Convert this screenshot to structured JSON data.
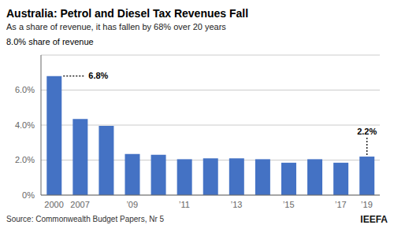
{
  "chart_data": {
    "type": "bar",
    "title": "Australia: Petrol and Diesel Tax Revenues Fall",
    "subtitle": "As a share of revenue, it has fallen by 68% over 20 years",
    "ylabel": "8.0% share of revenue",
    "source": "Source: Commonwealth Budget Papers, Nr 5",
    "logo": "IEEFA",
    "categories": [
      "2000",
      "2007",
      null,
      "’09",
      null,
      "’11",
      null,
      "’13",
      null,
      "’15",
      null,
      "’17",
      "’19"
    ],
    "values": [
      6.8,
      4.35,
      3.95,
      2.35,
      2.3,
      2.05,
      2.1,
      2.1,
      2.05,
      1.85,
      2.05,
      1.85,
      2.2
    ],
    "color": "#4472C4",
    "ylim": [
      0,
      8.0
    ],
    "yticks": [
      {
        "value": 0,
        "label": "0%"
      },
      {
        "value": 2.0,
        "label": "2.0%"
      },
      {
        "value": 4.0,
        "label": "4.0%"
      },
      {
        "value": 6.0,
        "label": "6.0%"
      }
    ],
    "grid": true,
    "annotations": [
      {
        "text": "6.8%",
        "index": 0
      },
      {
        "text": "2.2%",
        "index": 12
      }
    ]
  }
}
